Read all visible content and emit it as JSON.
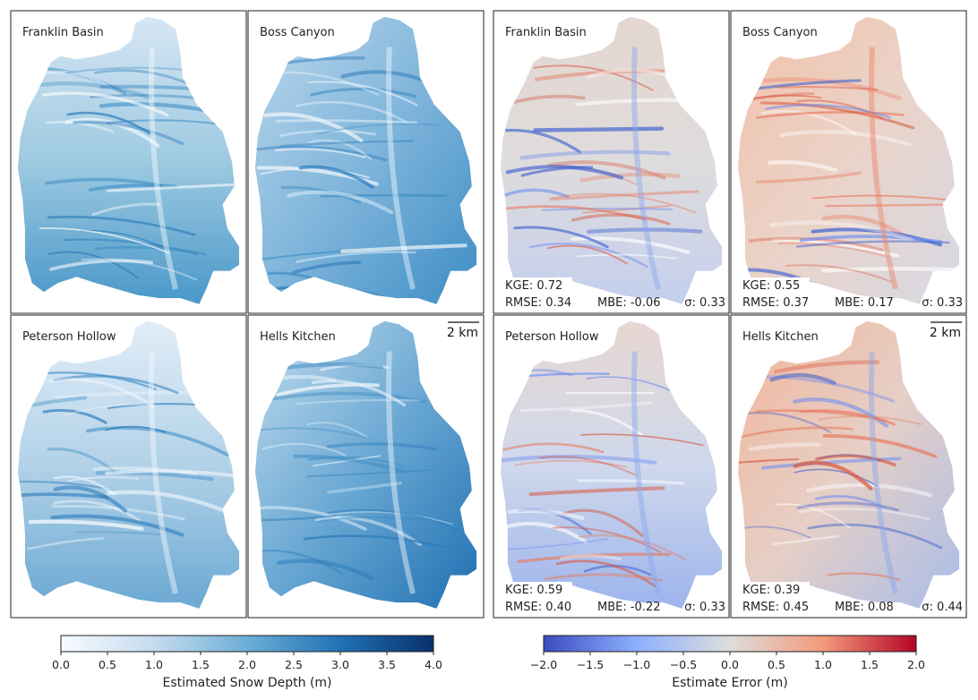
{
  "chart_data": [
    {
      "type": "heatmap",
      "group": "depth",
      "colormap": "Blues",
      "panels": [
        {
          "title": "Franklin Basin",
          "variant": 0
        },
        {
          "title": "Boss Canyon",
          "variant": 1
        },
        {
          "title": "Peterson Hollow",
          "variant": 2
        },
        {
          "title": "Hells Kitchen",
          "variant": 3
        }
      ],
      "scale_bar": "2 km",
      "colorbar": {
        "label": "Estimated Snow Depth (m)",
        "range": [
          0.0,
          4.0
        ],
        "ticks": [
          "0.0",
          "0.5",
          "1.0",
          "1.5",
          "2.0",
          "2.5",
          "3.0",
          "3.5",
          "4.0"
        ],
        "colors": [
          "#f7fbff",
          "#c6dbef",
          "#6baed6",
          "#2171b5",
          "#08306b"
        ]
      }
    },
    {
      "type": "heatmap",
      "group": "error",
      "colormap": "coolwarm",
      "panels": [
        {
          "title": "Franklin Basin",
          "variant": 0,
          "kge": "KGE: 0.72",
          "rmse": "RMSE: 0.34",
          "mbe": "MBE: -0.06",
          "sigma": "σ: 0.33"
        },
        {
          "title": "Boss Canyon",
          "variant": 1,
          "kge": "KGE: 0.55",
          "rmse": "RMSE: 0.37",
          "mbe": "MBE: 0.17",
          "sigma": "σ: 0.33"
        },
        {
          "title": "Peterson Hollow",
          "variant": 2,
          "kge": "KGE: 0.59",
          "rmse": "RMSE: 0.40",
          "mbe": "MBE: -0.22",
          "sigma": "σ: 0.33"
        },
        {
          "title": "Hells Kitchen",
          "variant": 3,
          "kge": "KGE: 0.39",
          "rmse": "RMSE: 0.45",
          "mbe": "MBE: 0.08",
          "sigma": "σ: 0.44"
        }
      ],
      "scale_bar": "2 km",
      "colorbar": {
        "label": "Estimate Error (m)",
        "range": [
          -2.0,
          2.0
        ],
        "ticks": [
          "−2.0",
          "−1.5",
          "−1.0",
          "−0.5",
          "0.0",
          "0.5",
          "1.0",
          "1.5",
          "2.0"
        ],
        "colors": [
          "#3b4cc0",
          "#8db0fe",
          "#dddddd",
          "#f49a7b",
          "#b40426"
        ]
      }
    }
  ]
}
